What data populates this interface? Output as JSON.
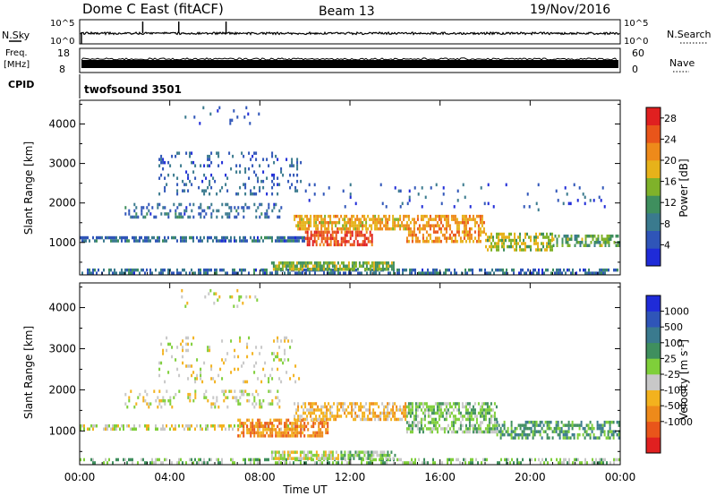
{
  "header": {
    "station": "Dome C East (fitACF)",
    "beam": "Beam 13",
    "date": "19/Nov/2016"
  },
  "top_panels": {
    "nsky_label": "N.Sky",
    "nsky_ticks": [
      "10^5",
      "10^0"
    ],
    "nsearch_label": "N.Search",
    "nsearch_ticks": [
      "10^5",
      "10^0"
    ],
    "freq_label": "Freq.",
    "freq_unit": "[MHz]",
    "freq_ticks": [
      "18",
      "8"
    ],
    "nave_label": "Nave",
    "nave_ticks": [
      "60",
      "0"
    ],
    "cpid_label": "CPID",
    "cpid_value": "twofsound 3501"
  },
  "x_axis": {
    "label": "Time UT",
    "ticks": [
      "00:00",
      "04:00",
      "08:00",
      "12:00",
      "16:00",
      "20:00",
      "00:00"
    ]
  },
  "chart_data": [
    {
      "type": "heatmap",
      "name": "power",
      "x_range_hours": [
        0,
        24
      ],
      "ylabel": "Slant Range [km]",
      "ylim": [
        180,
        4600
      ],
      "y_ticks": [
        1000,
        2000,
        3000,
        4000
      ],
      "colorbar": {
        "label": "Power [dB]",
        "ticks": [
          "4",
          "8",
          "12",
          "16",
          "20",
          "24",
          "28"
        ],
        "range": [
          0,
          30
        ],
        "colors": [
          "#1f2bd8",
          "#2f55b8",
          "#3a7a8e",
          "#3f8f5e",
          "#7fb22a",
          "#e7b21a",
          "#ee8a1a",
          "#e9551a",
          "#e02020"
        ]
      },
      "regions": [
        {
          "t": [
            0.0,
            10.0
          ],
          "r": [
            1000,
            1160
          ],
          "level": 7,
          "density": 0.65
        },
        {
          "t": [
            0.0,
            24.0
          ],
          "r": [
            200,
            340
          ],
          "level": 7,
          "density": 0.5
        },
        {
          "t": [
            8.5,
            14.0
          ],
          "r": [
            300,
            520
          ],
          "level": 14,
          "density": 0.75
        },
        {
          "t": [
            9.5,
            14.5
          ],
          "r": [
            1300,
            1700
          ],
          "level": 20,
          "density": 0.65
        },
        {
          "t": [
            10.0,
            13.0
          ],
          "r": [
            950,
            1300
          ],
          "level": 26,
          "density": 0.65
        },
        {
          "t": [
            14.5,
            18.0
          ],
          "r": [
            1000,
            1700
          ],
          "level": 21,
          "density": 0.6
        },
        {
          "t": [
            18.0,
            21.0
          ],
          "r": [
            800,
            1250
          ],
          "level": 16,
          "density": 0.55
        },
        {
          "t": [
            21.0,
            24.0
          ],
          "r": [
            900,
            1200
          ],
          "level": 13,
          "density": 0.5
        },
        {
          "t": [
            2.0,
            9.0
          ],
          "r": [
            1600,
            2000
          ],
          "level": 7,
          "density": 0.28
        },
        {
          "t": [
            3.5,
            9.8
          ],
          "r": [
            2200,
            3300
          ],
          "level": 6,
          "density": 0.15
        },
        {
          "t": [
            4.5,
            8.0
          ],
          "r": [
            4000,
            4450
          ],
          "level": 5,
          "density": 0.08
        },
        {
          "t": [
            10.0,
            24.0
          ],
          "r": [
            1800,
            2500
          ],
          "level": 5,
          "density": 0.04
        }
      ]
    },
    {
      "type": "heatmap",
      "name": "velocity",
      "x_range_hours": [
        0,
        24
      ],
      "ylabel": "Slant Range [km]",
      "ylim": [
        180,
        4600
      ],
      "y_ticks": [
        1000,
        2000,
        3000,
        4000
      ],
      "colorbar": {
        "label": "Velocity [m s",
        "label_sup": "-1",
        "label_end": "]",
        "ticks": [
          "1000",
          "500",
          "100",
          "25",
          "-25",
          "-100",
          "-500",
          "-1000"
        ],
        "colors": [
          "#1f2bd8",
          "#2f55b8",
          "#3a7a8e",
          "#3f8f5e",
          "#7fcf3a",
          "#c8c8c8",
          "#f3b21e",
          "#ee8a1a",
          "#e9551a",
          "#e02020"
        ]
      },
      "regions": [
        {
          "t": [
            0.0,
            10.0
          ],
          "r": [
            1000,
            1160
          ],
          "cls": 5,
          "density": 0.5
        },
        {
          "t": [
            0.0,
            24.0
          ],
          "r": [
            200,
            340
          ],
          "cls": 4,
          "density": 0.45
        },
        {
          "t": [
            8.5,
            11.5
          ],
          "r": [
            300,
            520
          ],
          "cls": 5,
          "density": 0.7
        },
        {
          "t": [
            11.5,
            14.0
          ],
          "r": [
            300,
            520
          ],
          "cls": 4,
          "density": 0.8
        },
        {
          "t": [
            7.0,
            11.0
          ],
          "r": [
            850,
            1300
          ],
          "cls": 7,
          "density": 0.6
        },
        {
          "t": [
            9.5,
            14.5
          ],
          "r": [
            1300,
            1700
          ],
          "cls": 6,
          "density": 0.6
        },
        {
          "t": [
            14.5,
            18.5
          ],
          "r": [
            1000,
            1700
          ],
          "cls": 4,
          "density": 0.6
        },
        {
          "t": [
            18.5,
            24.0
          ],
          "r": [
            800,
            1250
          ],
          "cls": 3,
          "density": 0.5
        },
        {
          "t": [
            2.0,
            9.0
          ],
          "r": [
            1600,
            2000
          ],
          "cls": 5,
          "density": 0.22
        },
        {
          "t": [
            3.5,
            9.8
          ],
          "r": [
            2200,
            3300
          ],
          "cls": 5,
          "density": 0.13
        },
        {
          "t": [
            4.5,
            8.0
          ],
          "r": [
            4000,
            4450
          ],
          "cls": 5,
          "density": 0.07
        }
      ]
    }
  ]
}
